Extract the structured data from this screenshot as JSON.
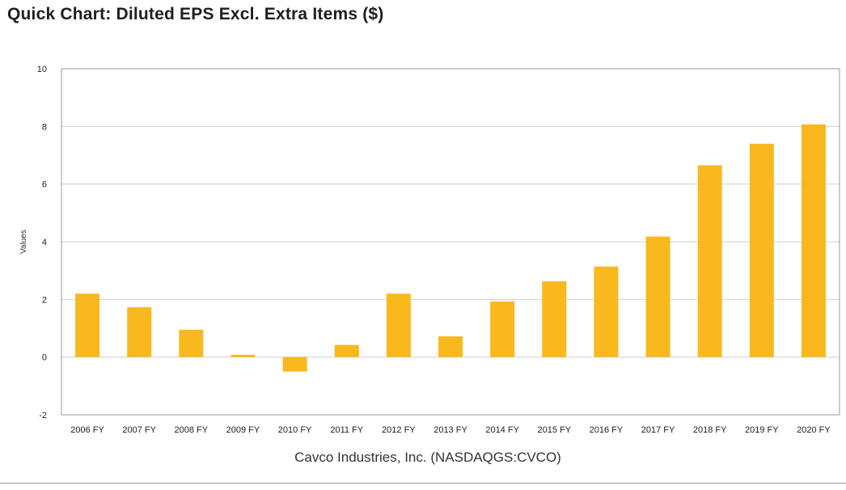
{
  "title": "Quick Chart: Diluted EPS Excl. Extra Items ($)",
  "colors": {
    "bar": "#F9B81E",
    "grid": "#cfcfcf",
    "axis": "#9a9a9a",
    "text": "#222222"
  },
  "chart_data": {
    "type": "bar",
    "title": "Quick Chart: Diluted EPS Excl. Extra Items ($)",
    "xlabel": "Cavco Industries, Inc. (NASDAQGS:CVCO)",
    "ylabel": "Values",
    "ylim": [
      -2,
      10
    ],
    "yticks": [
      -2,
      0,
      2,
      4,
      6,
      8,
      10
    ],
    "grid": true,
    "legend": "none",
    "categories": [
      "2006 FY",
      "2007 FY",
      "2008 FY",
      "2009 FY",
      "2010 FY",
      "2011 FY",
      "2012 FY",
      "2013 FY",
      "2014 FY",
      "2015 FY",
      "2016 FY",
      "2017 FY",
      "2018 FY",
      "2019 FY",
      "2020 FY"
    ],
    "values": [
      2.2,
      1.73,
      0.95,
      0.08,
      -0.5,
      0.42,
      2.2,
      0.72,
      1.93,
      2.63,
      3.14,
      4.18,
      6.65,
      7.4,
      8.07
    ]
  }
}
